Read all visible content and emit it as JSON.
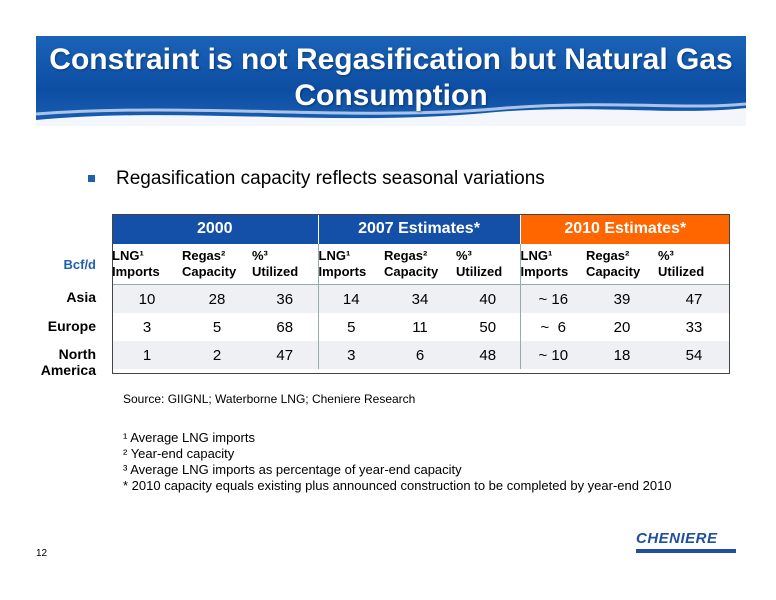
{
  "title": "Constraint is not Regasification but Natural Gas Consumption",
  "bullet": "Regasification capacity reflects seasonal variations",
  "table": {
    "unit_label": "Bcf/d",
    "groups": [
      "2000",
      "2007 Estimates*",
      "2010 Estimates*"
    ],
    "subheaders": [
      [
        "LNG¹",
        "Imports"
      ],
      [
        "Regas²",
        "Capacity"
      ],
      [
        "%³",
        "Utilized"
      ],
      [
        "LNG¹",
        "Imports"
      ],
      [
        "Regas²",
        "Capacity"
      ],
      [
        "%³",
        "Utilized"
      ],
      [
        "LNG¹",
        "Imports"
      ],
      [
        "Regas²",
        "Capacity"
      ],
      [
        "%³",
        "Utilized"
      ]
    ],
    "rows": [
      {
        "label": "Asia",
        "cells": [
          "10",
          "28",
          "36",
          "14",
          "34",
          "40",
          "~ 16",
          "39",
          "47"
        ]
      },
      {
        "label": "Europe",
        "cells": [
          "3",
          "5",
          "68",
          "5",
          "11",
          "50",
          "~  6",
          "20",
          "33"
        ]
      },
      {
        "label_line1": "North",
        "label_line2": "America",
        "cells": [
          "1",
          "2",
          "47",
          "3",
          "6",
          "48",
          "~ 10",
          "18",
          "54"
        ]
      }
    ]
  },
  "source": "Source: GIIGNL; Waterborne LNG; Cheniere Research",
  "notes": [
    "¹ Average LNG imports",
    "² Year-end capacity",
    "³ Average LNG imports as percentage of year-end capacity",
    "* 2010 capacity equals existing plus announced construction to be completed by year-end 2010"
  ],
  "page_number": "12",
  "logo_text": "CHENIERE",
  "colors": {
    "title_blue": "#1550a8",
    "accent_orange": "#ff6600"
  }
}
